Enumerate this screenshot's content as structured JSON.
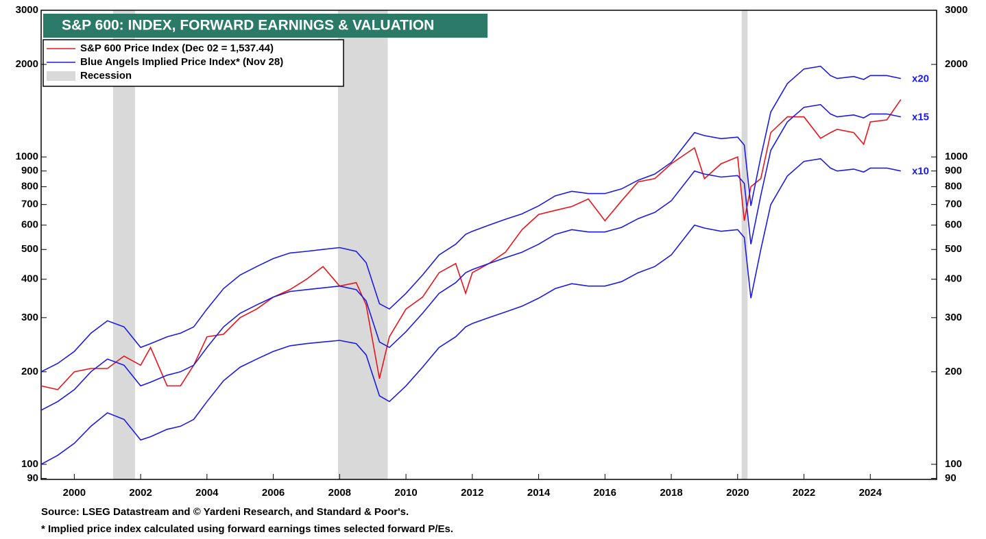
{
  "chart_data": {
    "type": "line",
    "title": "S&P 600: INDEX, FORWARD EARNINGS & VALUATION",
    "log_scale": true,
    "x": [
      1999.0,
      1999.5,
      2000.0,
      2000.5,
      2001.0,
      2001.5,
      2002.0,
      2002.3,
      2002.8,
      2003.2,
      2003.6,
      2004.0,
      2004.5,
      2005.0,
      2005.5,
      2006.0,
      2006.5,
      2007.0,
      2007.5,
      2008.0,
      2008.5,
      2008.8,
      2009.2,
      2009.5,
      2010.0,
      2010.5,
      2011.0,
      2011.5,
      2011.8,
      2012.0,
      2012.5,
      2013.0,
      2013.5,
      2014.0,
      2014.5,
      2015.0,
      2015.5,
      2016.0,
      2016.5,
      2017.0,
      2017.5,
      2018.0,
      2018.7,
      2019.0,
      2019.5,
      2020.0,
      2020.2,
      2020.4,
      2020.7,
      2021.0,
      2021.5,
      2022.0,
      2022.5,
      2022.8,
      2023.0,
      2023.5,
      2023.8,
      2024.0,
      2024.5,
      2024.92
    ],
    "series": [
      {
        "name": "S&P 600 Price Index (Dec 02 = 1,537.44)",
        "color": "#e8141b",
        "values": [
          180,
          175,
          200,
          205,
          205,
          225,
          210,
          240,
          180,
          180,
          210,
          260,
          265,
          300,
          320,
          350,
          370,
          400,
          440,
          380,
          390,
          330,
          190,
          260,
          320,
          350,
          420,
          450,
          360,
          420,
          450,
          490,
          580,
          650,
          670,
          690,
          730,
          620,
          720,
          830,
          850,
          950,
          1070,
          850,
          950,
          1000,
          620,
          800,
          850,
          1200,
          1350,
          1350,
          1150,
          1200,
          1230,
          1200,
          1100,
          1300,
          1320,
          1537.44
        ]
      },
      {
        "name": "Blue Angels Implied Price Index* (Nov 28)",
        "color": "#1a1ae6",
        "lines": [
          {
            "label": "x20",
            "values": [
              200,
              213,
              233,
              267,
              293,
              280,
              240,
              247,
              260,
              267,
              280,
              320,
              373,
              413,
              440,
              467,
              487,
              493,
              500,
              507,
              493,
              453,
              333,
              320,
              360,
              413,
              480,
              520,
              560,
              573,
              600,
              627,
              653,
              693,
              747,
              773,
              760,
              760,
              787,
              840,
              880,
              960,
              1200,
              1173,
              1147,
              1160,
              1093,
              693,
              1000,
              1400,
              1733,
              1933,
              1973,
              1840,
              1800,
              1827,
              1787,
              1840,
              1840,
              1800
            ]
          },
          {
            "label": "x15",
            "values": [
              150,
              160,
              175,
              200,
              220,
              210,
              180,
              185,
              195,
              200,
              210,
              240,
              280,
              310,
              330,
              350,
              365,
              370,
              375,
              380,
              370,
              340,
              250,
              240,
              270,
              310,
              360,
              390,
              420,
              430,
              450,
              470,
              490,
              520,
              560,
              580,
              570,
              570,
              590,
              630,
              660,
              720,
              900,
              880,
              860,
              870,
              820,
              520,
              750,
              1050,
              1300,
              1450,
              1480,
              1380,
              1350,
              1370,
              1340,
              1380,
              1380,
              1350
            ]
          },
          {
            "label": "x10",
            "values": [
              100,
              107,
              117,
              133,
              147,
              140,
              120,
              123,
              130,
              133,
              140,
              160,
              187,
              207,
              220,
              233,
              243,
              247,
              250,
              253,
              247,
              227,
              167,
              160,
              180,
              207,
              240,
              260,
              280,
              287,
              300,
              313,
              327,
              347,
              373,
              387,
              380,
              380,
              393,
              420,
              440,
              480,
              600,
              587,
              573,
              580,
              547,
              347,
              500,
              700,
              867,
              967,
              987,
              920,
              900,
              913,
              893,
              920,
              920,
              900
            ]
          }
        ]
      }
    ],
    "recession": {
      "name": "Recession",
      "color": "#d9d9d9",
      "spans": [
        [
          2001.17,
          2001.83
        ],
        [
          2007.95,
          2009.45
        ],
        [
          2020.12,
          2020.3
        ]
      ]
    },
    "xlim": [
      1999.0,
      2026.0
    ],
    "xticks": [
      2000,
      2002,
      2004,
      2006,
      2008,
      2010,
      2012,
      2014,
      2016,
      2018,
      2020,
      2022,
      2024
    ],
    "ylim": [
      89.3,
      3000
    ],
    "yticks": [
      90,
      100,
      200,
      300,
      400,
      500,
      600,
      700,
      800,
      900,
      1000,
      2000,
      3000
    ],
    "notes": [
      "Source: LSEG Datastream and © Yardeni Research, and Standard & Poor's.",
      "* Implied price index calculated using forward earnings times selected forward P/Es."
    ]
  }
}
